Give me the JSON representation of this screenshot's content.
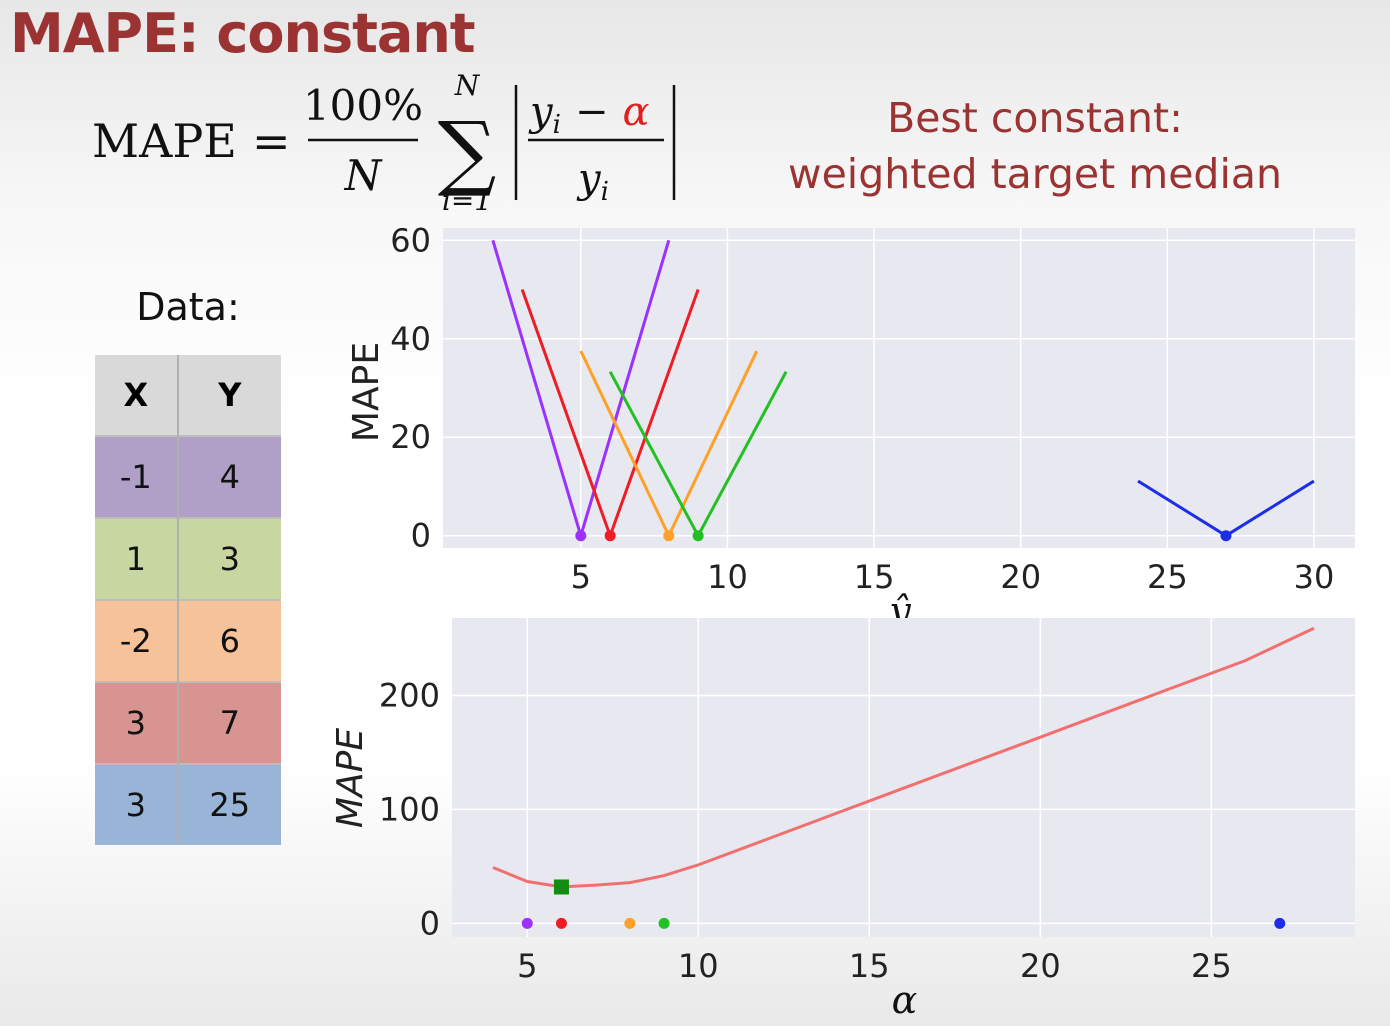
{
  "slide": {
    "title": "MAPE: constant",
    "best_constant_line1": "Best constant:",
    "best_constant_line2": "weighted target median"
  },
  "formula": {
    "lhs": "MAPE",
    "equals": "=",
    "coef_numer": "100%",
    "coef_denom": "N",
    "sum_upper": "N",
    "sum_lower": "i=1",
    "frac_numer_y": "y",
    "frac_numer_sub": "i",
    "frac_numer_minus": "−",
    "frac_numer_alpha": "α",
    "frac_denom_y": "y",
    "frac_denom_sub": "i",
    "alpha_color": "#e02020",
    "text_color": "#111111"
  },
  "data_table": {
    "label": "Data:",
    "headers": [
      "X",
      "Y"
    ],
    "rows": [
      {
        "x": "-1",
        "y": "4",
        "color": "#b09fc6"
      },
      {
        "x": "1",
        "y": "3",
        "color": "#c8d7a2"
      },
      {
        "x": "-2",
        "y": "6",
        "color": "#f5c299"
      },
      {
        "x": "3",
        "y": "7",
        "color": "#d79491"
      },
      {
        "x": "3",
        "y": "25",
        "color": "#98b5d8"
      }
    ]
  },
  "chart_data": [
    {
      "type": "line",
      "ylabel": "MAPE",
      "xlabel": "ŷ",
      "xlim": [
        0.3,
        31.4
      ],
      "ylim": [
        -2.5,
        62.5
      ],
      "x_ticks": [
        5,
        10,
        15,
        20,
        25,
        30
      ],
      "y_ticks": [
        0,
        20,
        40,
        60
      ],
      "grid": true,
      "background": "#e8e8f0",
      "series": [
        {
          "color": "#9b30ff",
          "x": [
            2,
            5,
            8
          ],
          "y": [
            60,
            0,
            60
          ],
          "marker": {
            "x": 5,
            "y": 0
          }
        },
        {
          "color": "#ee1c24",
          "x": [
            3,
            6,
            9
          ],
          "y": [
            50,
            0,
            50
          ],
          "marker": {
            "x": 6,
            "y": 0
          }
        },
        {
          "color": "#ffa028",
          "x": [
            5,
            8,
            11
          ],
          "y": [
            37.5,
            0,
            37.5
          ],
          "marker": {
            "x": 8,
            "y": 0
          }
        },
        {
          "color": "#22c022",
          "x": [
            6,
            9,
            12
          ],
          "y": [
            33.3,
            0,
            33.3
          ],
          "marker": {
            "x": 9,
            "y": 0
          }
        },
        {
          "color": "#1c2ee8",
          "x": [
            24,
            27,
            30
          ],
          "y": [
            11.1,
            0,
            11.1
          ],
          "marker": {
            "x": 27,
            "y": 0
          }
        }
      ]
    },
    {
      "type": "line",
      "ylabel": "MAPE",
      "xlabel": "α",
      "xlim": [
        2.8,
        29.2
      ],
      "ylim": [
        -12,
        268
      ],
      "x_ticks": [
        5,
        10,
        15,
        20,
        25
      ],
      "y_ticks": [
        0,
        100,
        200
      ],
      "grid": true,
      "background": "#e8e8f0",
      "curve": {
        "color": "#f07070",
        "x": [
          4,
          5,
          6,
          7,
          8,
          9,
          10,
          12,
          14,
          16,
          18,
          20,
          22,
          24,
          26,
          28
        ],
        "y": [
          49,
          36.7,
          32,
          33.5,
          35.7,
          41.9,
          51.3,
          73.7,
          96.2,
          118.6,
          141.0,
          163.4,
          185.9,
          208.3,
          230.7,
          259
        ]
      },
      "minimum": {
        "x": 6,
        "y": 31.9,
        "color": "#138c13",
        "shape": "square"
      },
      "points": [
        {
          "x": 5,
          "y": 0,
          "color": "#9b30ff"
        },
        {
          "x": 6,
          "y": 0,
          "color": "#ee1c24"
        },
        {
          "x": 8,
          "y": 0,
          "color": "#ffa028"
        },
        {
          "x": 9,
          "y": 0,
          "color": "#22c022"
        },
        {
          "x": 27,
          "y": 0,
          "color": "#1c2ee8"
        }
      ]
    }
  ]
}
